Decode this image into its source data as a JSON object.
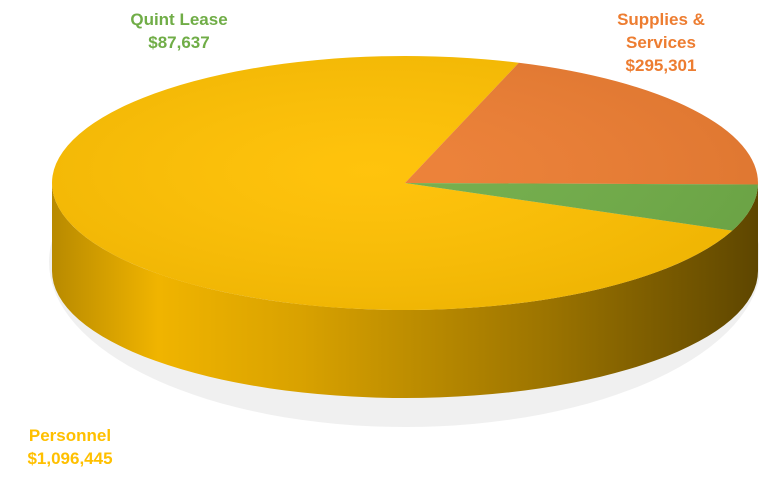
{
  "chart_data": {
    "type": "pie",
    "style": "3d",
    "series": [
      {
        "name": "Personnel",
        "value": 1096445,
        "value_label": "$1,096,445",
        "color": "#FFC000"
      },
      {
        "name": "Supplies & Services",
        "value": 295301,
        "value_label": "$295,301",
        "color": "#ED7D31"
      },
      {
        "name": "Quint Lease",
        "value": 87637,
        "value_label": "$87,637",
        "color": "#70AD47"
      }
    ],
    "labels": {
      "personnel": {
        "line1": "Personnel",
        "line2": "$1,096,445"
      },
      "supplies": {
        "line1": "Supplies &",
        "line2": "Services",
        "line3": "$295,301"
      },
      "quint": {
        "line1": "Quint Lease",
        "line2": "$87,637"
      }
    }
  }
}
